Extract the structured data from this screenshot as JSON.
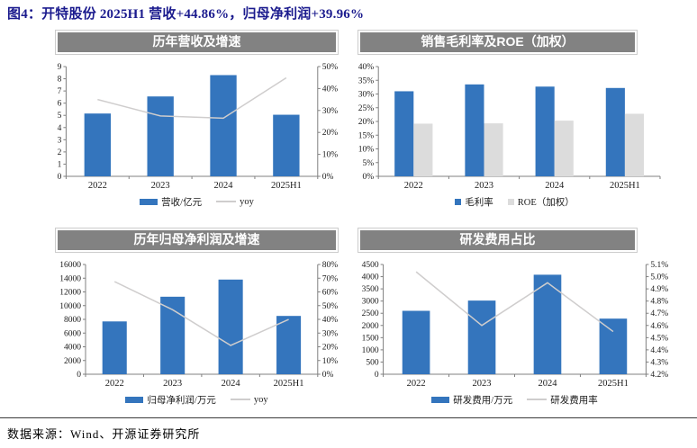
{
  "title": "图4：开特股份 2025H1 营收+44.86%，归母净利润+39.96%",
  "source": "数据来源：Wind、开源证券研究所",
  "colors": {
    "bar_blue": "#3475BD",
    "bar_gray": "#DCDCDC",
    "line_gray": "#CFCDCD",
    "header_bg": "#828282",
    "header_text": "#FFFFFF",
    "title_text": "#1B1B8E",
    "axis": "#808080"
  },
  "chart_data": [
    {
      "id": "revenue-growth",
      "type": "bar+line",
      "title": "历年营收及增速",
      "categories": [
        "2022",
        "2023",
        "2024",
        "2025H1"
      ],
      "bar_series": [
        {
          "name": "营收/亿元",
          "color": "bar_blue",
          "values": [
            5.15,
            6.55,
            8.3,
            5.05
          ]
        }
      ],
      "line_series": [
        {
          "name": "yoy",
          "color": "line_gray",
          "values": [
            35,
            27.5,
            26.5,
            44.86
          ]
        }
      ],
      "left_axis": {
        "min": 0,
        "max": 9,
        "step": 1,
        "format": "int"
      },
      "right_axis": {
        "min": 0,
        "max": 50,
        "step": 10,
        "format": "pct0"
      },
      "legend_position": "bottom",
      "grid": false
    },
    {
      "id": "gross-margin-roe",
      "type": "bar",
      "title": "销售毛利率及ROE（加权）",
      "categories": [
        "2022",
        "2023",
        "2024",
        "2025H1"
      ],
      "bar_series": [
        {
          "name": "毛利率",
          "color": "bar_blue",
          "values": [
            31,
            33.5,
            32.7,
            32.2
          ]
        },
        {
          "name": "ROE（加权）",
          "color": "bar_gray",
          "values": [
            19.2,
            19.3,
            20.3,
            22.8
          ]
        }
      ],
      "line_series": [],
      "left_axis": {
        "min": 0,
        "max": 40,
        "step": 5,
        "format": "pct0"
      },
      "right_axis": null,
      "legend_position": "bottom",
      "grid": false
    },
    {
      "id": "net-profit-growth",
      "type": "bar+line",
      "title": "历年归母净利润及增速",
      "categories": [
        "2022",
        "2023",
        "2024",
        "2025H1"
      ],
      "bar_series": [
        {
          "name": "归母净利润/万元",
          "color": "bar_blue",
          "values": [
            7700,
            11300,
            13800,
            8500
          ]
        }
      ],
      "line_series": [
        {
          "name": "yoy",
          "color": "line_gray",
          "values": [
            67.5,
            47,
            21,
            39.96
          ]
        }
      ],
      "left_axis": {
        "min": 0,
        "max": 16000,
        "step": 2000,
        "format": "int"
      },
      "right_axis": {
        "min": 0,
        "max": 80,
        "step": 10,
        "format": "pct0"
      },
      "legend_position": "bottom",
      "grid": false
    },
    {
      "id": "rd-expense-ratio",
      "type": "bar+line",
      "title": "研发费用占比",
      "categories": [
        "2022",
        "2023",
        "2024",
        "2025H1"
      ],
      "bar_series": [
        {
          "name": "研发费用/万元",
          "color": "bar_blue",
          "values": [
            2600,
            3020,
            4080,
            2280
          ]
        }
      ],
      "line_series": [
        {
          "name": "研发费用率",
          "color": "line_gray",
          "values": [
            5.04,
            4.6,
            4.95,
            4.55
          ]
        }
      ],
      "left_axis": {
        "min": 0,
        "max": 4500,
        "step": 500,
        "format": "int"
      },
      "right_axis": {
        "min": 4.2,
        "max": 5.1,
        "step": 0.1,
        "format": "pct1"
      },
      "legend_position": "bottom",
      "grid": false
    }
  ]
}
